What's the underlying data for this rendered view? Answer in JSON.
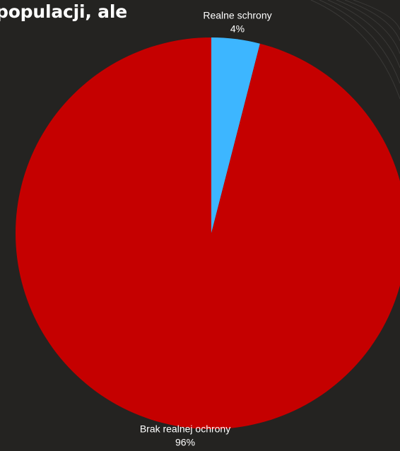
{
  "headline": "populacji, ale",
  "chart_data": {
    "type": "pie",
    "title": "",
    "slices": [
      {
        "label": "Realne schrony",
        "value": 4,
        "value_label": "4%",
        "color": "#3db6ff"
      },
      {
        "label": "Brak realnej ochrony",
        "value": 96,
        "value_label": "96%",
        "color": "#c50000"
      }
    ],
    "start_angle": "12 o'clock",
    "direction": "clockwise",
    "labels": "outside"
  },
  "colors": {
    "background": "#242321",
    "text": "#ffffff"
  }
}
